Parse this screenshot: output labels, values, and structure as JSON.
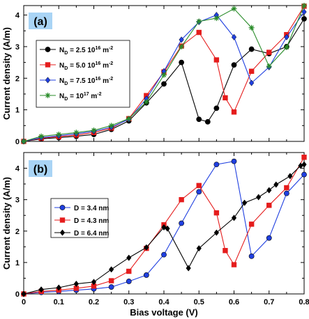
{
  "chart_data": [
    {
      "type": "line",
      "panel_label": "(a)",
      "ylabel": "Current density (A/m)",
      "xlim": [
        0,
        0.8
      ],
      "ylim": [
        0,
        4.3
      ],
      "yticks": [
        0,
        1,
        2,
        3,
        4
      ],
      "xtick_labels": [],
      "legend_position": "left",
      "series": [
        {
          "name": "N_D = 2.5 10^16 m^-2",
          "legend_text": {
            "prefix": "N",
            "sub": "D",
            "mid": " = 2.5 10",
            "sup": "16",
            "unit": " m",
            "unit_sup": "-2"
          },
          "color": "#000000",
          "marker": "circle",
          "x": [
            0,
            0.05,
            0.1,
            0.15,
            0.2,
            0.25,
            0.3,
            0.35,
            0.4,
            0.45,
            0.5,
            0.525,
            0.55,
            0.6,
            0.65,
            0.7,
            0.75,
            0.8
          ],
          "y": [
            0,
            0.08,
            0.12,
            0.16,
            0.22,
            0.38,
            0.65,
            1.22,
            1.82,
            2.5,
            0.7,
            0.62,
            1.05,
            2.42,
            2.92,
            2.78,
            3.0,
            3.88
          ]
        },
        {
          "name": "N_D = 5.0 10^16 m^-2",
          "legend_text": {
            "prefix": "N",
            "sub": "D",
            "mid": " = 5.0 10",
            "sup": "16",
            "unit": " m",
            "unit_sup": "-2"
          },
          "color": "#e51c1c",
          "marker": "square",
          "x": [
            0,
            0.05,
            0.1,
            0.15,
            0.2,
            0.25,
            0.3,
            0.35,
            0.4,
            0.45,
            0.5,
            0.55,
            0.575,
            0.6,
            0.65,
            0.7,
            0.75,
            0.8
          ],
          "y": [
            0,
            0.1,
            0.15,
            0.2,
            0.28,
            0.42,
            0.72,
            1.45,
            2.2,
            3.02,
            3.45,
            2.58,
            1.38,
            0.93,
            2.22,
            2.82,
            3.38,
            4.28
          ]
        },
        {
          "name": "N_D = 7.5 10^16 m^-2",
          "legend_text": {
            "prefix": "N",
            "sub": "D",
            "mid": " = 7.5 10",
            "sup": "16",
            "unit": " m",
            "unit_sup": "-2"
          },
          "color": "#1f3fe0",
          "marker": "diamond",
          "x": [
            0,
            0.05,
            0.1,
            0.15,
            0.2,
            0.25,
            0.3,
            0.35,
            0.4,
            0.45,
            0.5,
            0.55,
            0.6,
            0.65,
            0.7,
            0.75,
            0.8
          ],
          "y": [
            0,
            0.12,
            0.18,
            0.24,
            0.32,
            0.45,
            0.7,
            1.35,
            2.22,
            3.22,
            3.78,
            4.0,
            3.3,
            1.85,
            2.35,
            3.3,
            4.1
          ]
        },
        {
          "name": "N_D = 10^17 m^-2",
          "legend_text": {
            "prefix": "N",
            "sub": "D",
            "mid": " = 10",
            "sup": "17",
            "unit": " m",
            "unit_sup": "-2"
          },
          "color": "#2a8c2a",
          "marker": "star",
          "x": [
            0,
            0.05,
            0.1,
            0.15,
            0.2,
            0.25,
            0.3,
            0.35,
            0.4,
            0.45,
            0.5,
            0.55,
            0.6,
            0.65,
            0.7,
            0.75,
            0.8
          ],
          "y": [
            0,
            0.16,
            0.22,
            0.28,
            0.35,
            0.5,
            0.72,
            1.25,
            2.1,
            3.0,
            3.8,
            3.9,
            4.2,
            3.6,
            2.38,
            2.98,
            4.3
          ]
        }
      ]
    },
    {
      "type": "line",
      "panel_label": "(b)",
      "ylabel": "Current density (A/m)",
      "xlabel": "Bias voltage (V)",
      "xlim": [
        0,
        0.8
      ],
      "ylim": [
        0,
        4.5
      ],
      "yticks": [
        0,
        1,
        2,
        3,
        4
      ],
      "xtick_labels": [
        "0",
        "0.1",
        "0.2",
        "0.3",
        "0.4",
        "0.5",
        "0.6",
        "0.7",
        "0.8"
      ],
      "legend_position": "left",
      "series": [
        {
          "name": "D = 3.4 nm",
          "color": "#1f3fe0",
          "marker": "circle",
          "x": [
            0,
            0.05,
            0.1,
            0.15,
            0.2,
            0.25,
            0.3,
            0.35,
            0.4,
            0.45,
            0.5,
            0.55,
            0.6,
            0.65,
            0.7,
            0.75,
            0.8
          ],
          "y": [
            0,
            0.05,
            0.08,
            0.12,
            0.16,
            0.22,
            0.4,
            0.6,
            1.25,
            2.25,
            3.25,
            4.12,
            4.22,
            1.2,
            1.78,
            3.2,
            3.8
          ]
        },
        {
          "name": "D = 4.3 nm",
          "color": "#e51c1c",
          "marker": "square",
          "x": [
            0,
            0.05,
            0.1,
            0.15,
            0.2,
            0.25,
            0.3,
            0.35,
            0.4,
            0.45,
            0.5,
            0.55,
            0.575,
            0.6,
            0.65,
            0.7,
            0.75,
            0.8
          ],
          "y": [
            0,
            0.08,
            0.12,
            0.18,
            0.25,
            0.42,
            0.72,
            1.45,
            2.2,
            3.0,
            3.45,
            2.58,
            1.38,
            0.93,
            2.22,
            2.82,
            3.38,
            4.35
          ]
        },
        {
          "name": "D = 6.4 nm",
          "color": "#000000",
          "marker": "diamond",
          "x": [
            0,
            0.05,
            0.1,
            0.15,
            0.2,
            0.25,
            0.3,
            0.35,
            0.4,
            0.41,
            0.47,
            0.5,
            0.55,
            0.6,
            0.63,
            0.67,
            0.7,
            0.72,
            0.76,
            0.79,
            0.8
          ],
          "y": [
            0,
            0.14,
            0.2,
            0.32,
            0.38,
            0.78,
            1.15,
            1.48,
            2.12,
            2.08,
            0.82,
            1.45,
            1.95,
            2.42,
            2.9,
            3.08,
            3.3,
            3.48,
            3.75,
            4.08,
            4.12
          ]
        }
      ]
    }
  ]
}
